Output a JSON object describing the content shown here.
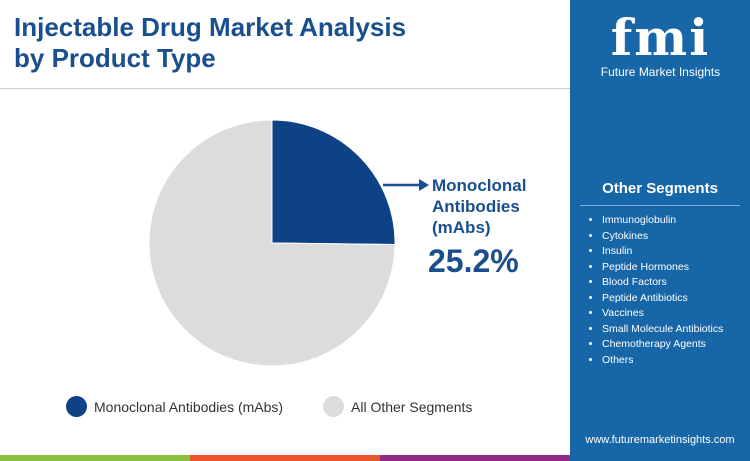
{
  "title": "Injectable Drug Market Analysis by Product Type",
  "logo": {
    "mark": "fmi",
    "name": "Future Market Insights"
  },
  "other_segments": {
    "heading": "Other Segments",
    "items": [
      "Immunoglobulin",
      "Cytokines",
      "Insulin",
      "Peptide Hormones",
      "Blood Factors",
      "Peptide Antibiotics",
      "Vaccines",
      "Small Molecule Antibiotics",
      "Chemotherapy Agents",
      "Others"
    ]
  },
  "website": "www.futuremarketinsights.com",
  "chart_data": {
    "type": "pie",
    "title": "Injectable Drug Market Analysis by Product Type",
    "slices": [
      {
        "name": "Monoclonal Antibodies (mAbs)",
        "value": 25.2,
        "color": "#0d4287"
      },
      {
        "name": "All Other Segments",
        "value": 74.8,
        "color": "#dcdcdc"
      }
    ],
    "callout": {
      "label": "Monoclonal Antibodies (mAbs)",
      "value": "25.2%"
    },
    "legend_position": "bottom"
  }
}
